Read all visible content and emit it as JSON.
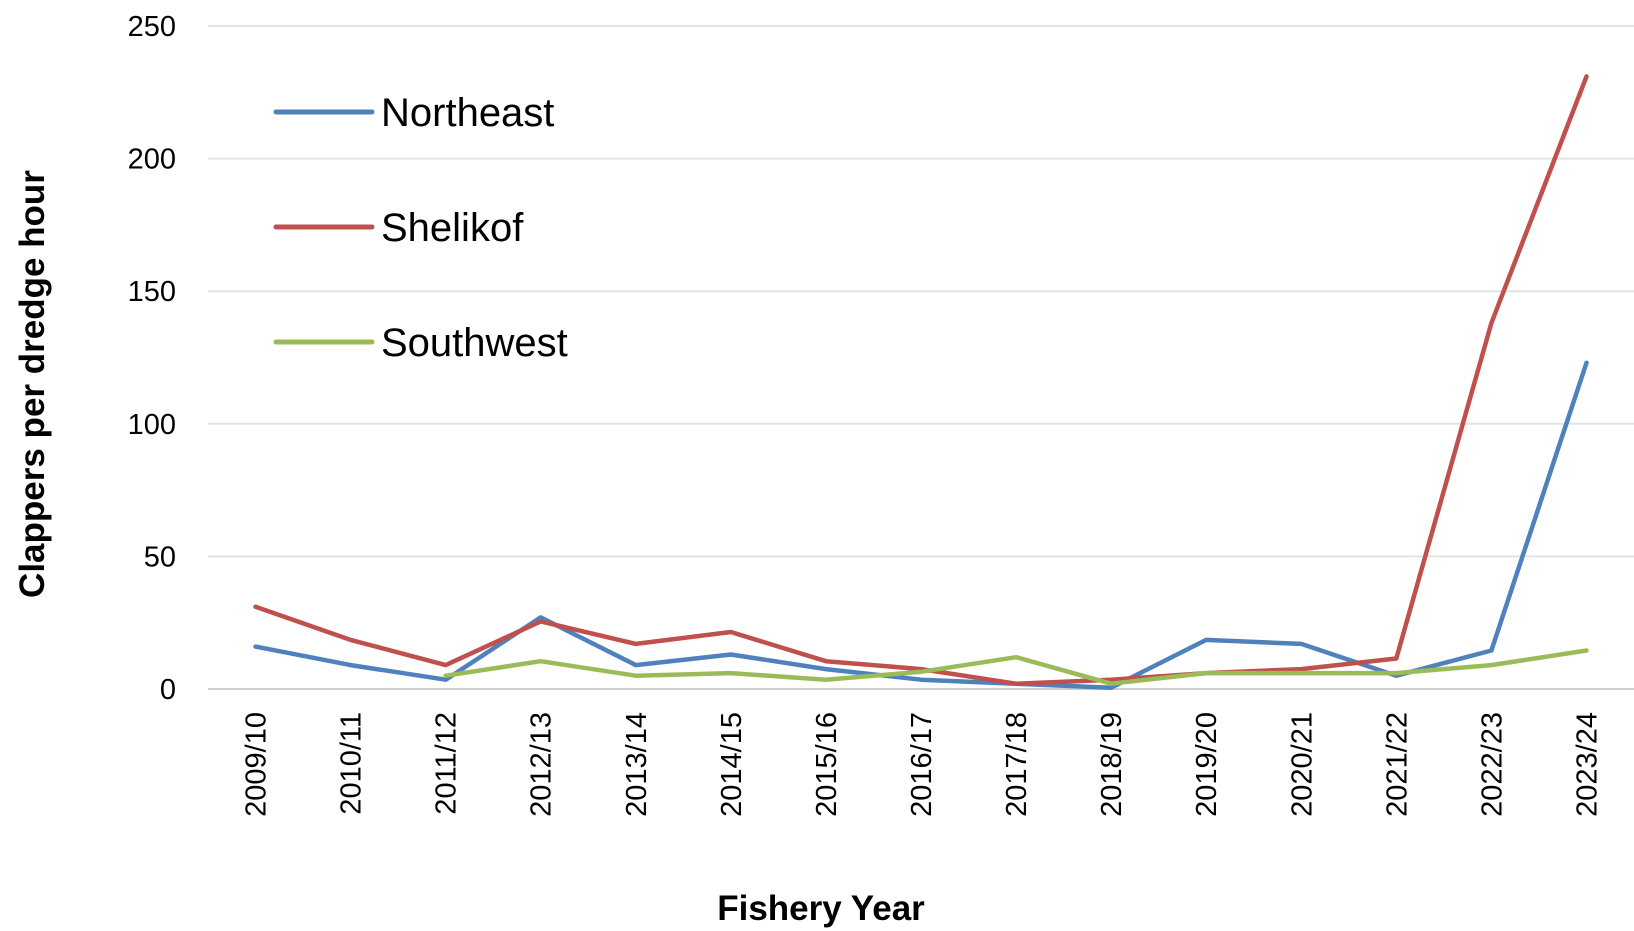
{
  "chart_data": {
    "type": "line",
    "xlabel": "Fishery Year",
    "ylabel": "Clappers per dredge hour",
    "ylim": [
      0,
      250
    ],
    "yticks": [
      0,
      50,
      100,
      150,
      200,
      250
    ],
    "grid": true,
    "legend_position": "top-left",
    "categories": [
      "2009/10",
      "2010/11",
      "2011/12",
      "2012/13",
      "2013/14",
      "2014/15",
      "2015/16",
      "2016/17",
      "2017/18",
      "2018/19",
      "2019/20",
      "2020/21",
      "2021/22",
      "2022/23",
      "2023/24"
    ],
    "series": [
      {
        "name": "Northeast",
        "color": "#4F81BD",
        "values": [
          16,
          9,
          3.5,
          27,
          9,
          13,
          7.5,
          3.5,
          2,
          0.5,
          18.5,
          17,
          5,
          14.5,
          123
        ]
      },
      {
        "name": "Shelikof",
        "color": "#C0504D",
        "values": [
          31,
          18.5,
          9,
          25.5,
          17,
          21.5,
          10.5,
          7.5,
          2,
          3.5,
          6,
          7.5,
          11.5,
          138,
          231
        ]
      },
      {
        "name": "Southwest",
        "color": "#9BBB59",
        "values": [
          null,
          null,
          5,
          10.5,
          5,
          6,
          3.5,
          6.5,
          12,
          2,
          6,
          6,
          6,
          9,
          14.5
        ]
      }
    ]
  }
}
